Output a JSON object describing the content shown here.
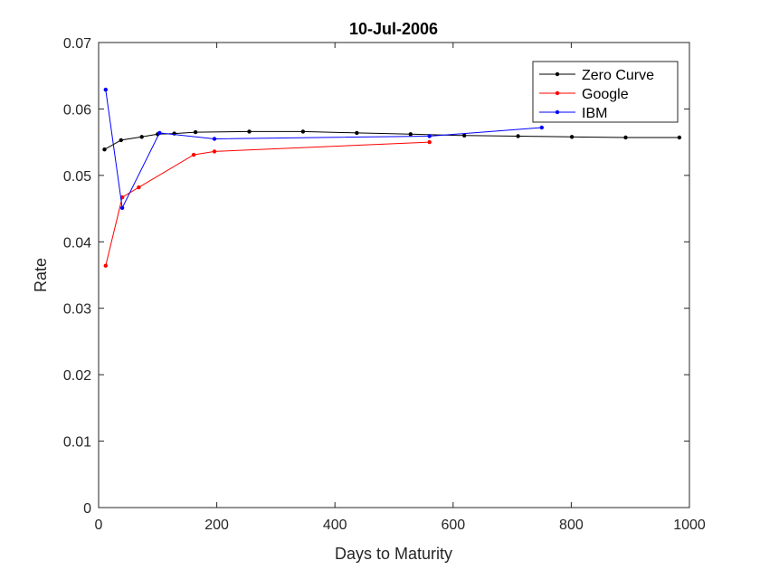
{
  "chart_data": {
    "type": "line",
    "title": "10-Jul-2006",
    "xlabel": "Days to Maturity",
    "ylabel": "Rate",
    "xlim": [
      0,
      1000
    ],
    "ylim": [
      0,
      0.07
    ],
    "xticks": [
      0,
      200,
      400,
      600,
      800,
      1000
    ],
    "xtick_labels": [
      "0",
      "200",
      "400",
      "600",
      "800",
      "1000"
    ],
    "yticks": [
      0,
      0.01,
      0.02,
      0.03,
      0.04,
      0.05,
      0.06,
      0.07
    ],
    "ytick_labels": [
      "0",
      "0.01",
      "0.02",
      "0.03",
      "0.04",
      "0.05",
      "0.06",
      "0.07"
    ],
    "grid": false,
    "legend_position": "top-right",
    "series": [
      {
        "name": "Zero Curve",
        "color": "#000000",
        "x": [
          10,
          38,
          73,
          100,
          128,
          164,
          255,
          346,
          437,
          528,
          619,
          710,
          801,
          892,
          983
        ],
        "y": [
          0.0539,
          0.0553,
          0.0558,
          0.0562,
          0.0563,
          0.0565,
          0.0566,
          0.0566,
          0.0564,
          0.0562,
          0.056,
          0.0559,
          0.0558,
          0.0557,
          0.0557
        ]
      },
      {
        "name": "Google",
        "color": "#ff0000",
        "x": [
          12,
          40,
          68,
          161,
          196,
          560
        ],
        "y": [
          0.0364,
          0.0467,
          0.0482,
          0.0531,
          0.0536,
          0.055
        ]
      },
      {
        "name": "IBM",
        "color": "#0000ff",
        "x": [
          12,
          40,
          103,
          196,
          560,
          750
        ],
        "y": [
          0.0629,
          0.0451,
          0.0564,
          0.0555,
          0.0559,
          0.0572
        ]
      }
    ]
  }
}
